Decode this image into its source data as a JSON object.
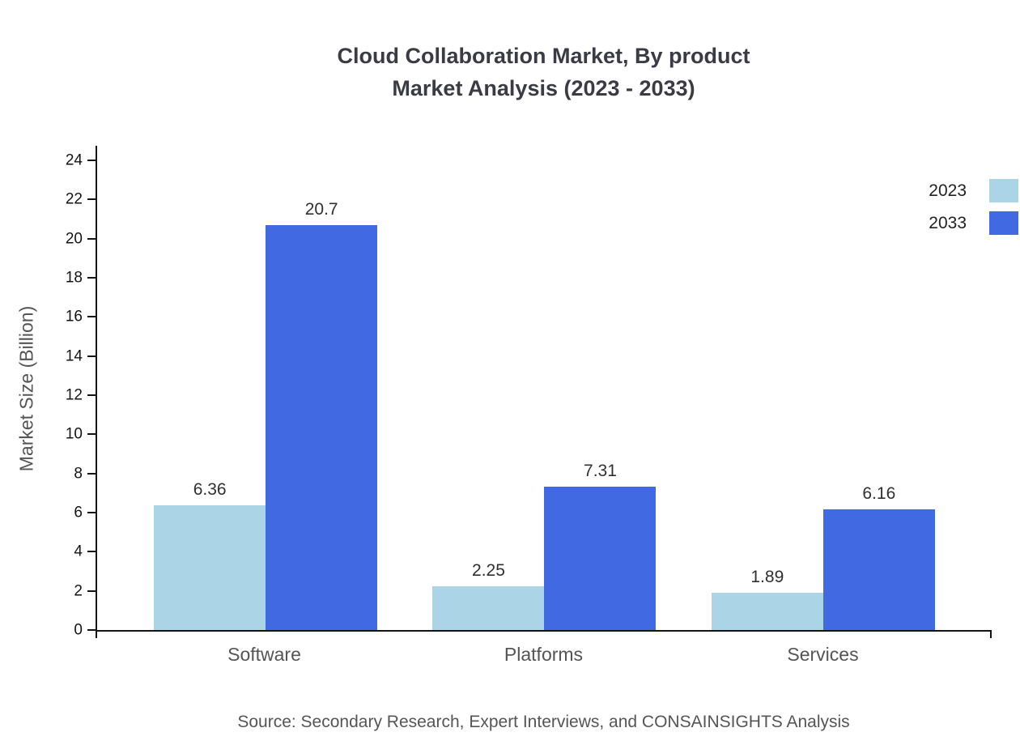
{
  "title": {
    "line1": "Cloud Collaboration Market, By product",
    "line2": "Market Analysis (2023 - 2033)"
  },
  "source": "Source: Secondary Research, Expert Interviews, and CONSAINSIGHTS Analysis",
  "colors": {
    "series_2023": "#abd5e6",
    "series_2033": "#4169e1",
    "axis": "#141414",
    "title_text": "#3b3b45",
    "label_text": "#555555"
  },
  "chart_data": {
    "type": "bar",
    "title": "Cloud Collaboration Market, By product Market Analysis (2023 - 2033)",
    "categories": [
      "Software",
      "Platforms",
      "Services"
    ],
    "series": [
      {
        "name": "2023",
        "color": "#abd5e6",
        "values": [
          6.36,
          2.25,
          1.89
        ]
      },
      {
        "name": "2033",
        "color": "#4169e1",
        "values": [
          20.7,
          7.31,
          6.16
        ]
      }
    ],
    "xlabel": "",
    "ylabel": "Market Size (Billion)",
    "ylim": [
      0,
      24
    ],
    "yticks": [
      0,
      2,
      4,
      6,
      8,
      10,
      12,
      14,
      16,
      18,
      20,
      22,
      24
    ],
    "grid": false,
    "legend_position": "top-right",
    "value_labels": true
  }
}
